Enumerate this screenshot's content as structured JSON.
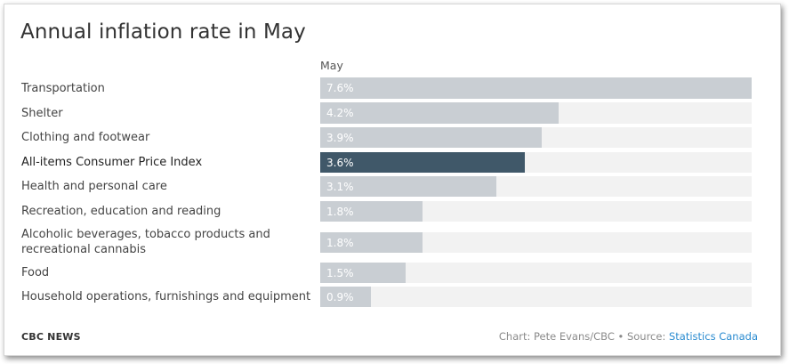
{
  "chart_data": {
    "type": "bar",
    "orientation": "horizontal",
    "title": "Annual inflation rate in May",
    "column_header": "May",
    "categories": [
      "Transportation",
      "Shelter",
      "Clothing and footwear",
      "All-items Consumer Price Index",
      "Health and personal care",
      "Recreation, education and reading",
      "Alcoholic beverages, tobacco products and recreational cannabis",
      "Food",
      "Household operations, furnishings and equipment"
    ],
    "values": [
      7.6,
      4.2,
      3.9,
      3.6,
      3.1,
      1.8,
      1.8,
      1.5,
      0.9
    ],
    "value_labels": [
      "7.6%",
      "4.2%",
      "3.9%",
      "3.6%",
      "3.1%",
      "1.8%",
      "1.8%",
      "1.5%",
      "0.9%"
    ],
    "highlighted_category": "All-items Consumer Price Index",
    "xlim": [
      0,
      7.6
    ],
    "grid": false,
    "colors": {
      "bar": "#c9ced3",
      "highlight_bar": "#405869",
      "track": "#f2f2f2"
    }
  },
  "footer": {
    "brand": "CBC NEWS",
    "credit": "Chart: Pete Evans/CBC • Source: ",
    "source_link": "Statistics Canada",
    "link_color": "#2a8bd0"
  }
}
